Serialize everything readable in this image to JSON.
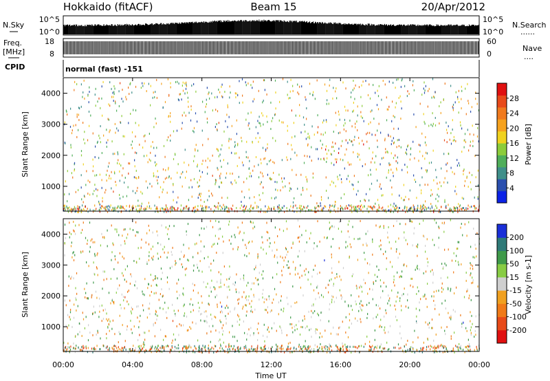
{
  "header": {
    "station": "Hokkaido (fitACF)",
    "beam": "Beam 15",
    "date": "20/Apr/2012"
  },
  "left_labels": {
    "nsky": "N.Sky",
    "freq_line1": "Freq.",
    "freq_line2": "[MHz]",
    "cpid": "CPID"
  },
  "right_labels": {
    "nsearch": "N.Search",
    "nsearch_dots": "......",
    "nave": "Nave",
    "nave_dots": "...."
  },
  "noise_panel": {
    "left_ticks": [
      "10^5",
      "10^0"
    ],
    "right_ticks": [
      "10^5",
      "10^0"
    ]
  },
  "freq_panel": {
    "left_ticks": [
      "18",
      "8"
    ],
    "right_ticks": [
      "60",
      "0"
    ]
  },
  "cpid_text": "normal (fast) -151",
  "time_axis": {
    "label": "Time UT",
    "ticks": [
      "00:00",
      "04:00",
      "08:00",
      "12:00",
      "16:00",
      "20:00",
      "00:00"
    ],
    "range_hours": [
      0,
      24
    ]
  },
  "chart_data": [
    {
      "type": "heatmap",
      "name": "power",
      "ylabel": "Slant Range [km]",
      "yticks": [
        1000,
        2000,
        3000,
        4000
      ],
      "ylim": [
        200,
        4500
      ],
      "colorbar": {
        "label": "Power [dB]",
        "ticks": [
          4,
          8,
          12,
          16,
          20,
          24,
          28
        ],
        "range": [
          0,
          32
        ],
        "colors": [
          "#0b22e6",
          "#2a4fae",
          "#3f8f8a",
          "#4fae5a",
          "#8ccc3a",
          "#f0d21e",
          "#f6a21e",
          "#f07a1e",
          "#e84a1a",
          "#e01010"
        ]
      },
      "bands": [
        {
          "t0": 0,
          "t1": 3,
          "r0": 700,
          "r1": 1400,
          "value": 22
        },
        {
          "t0": 1.5,
          "t1": 6,
          "r0": 1250,
          "r1": 1900,
          "value": 18
        },
        {
          "t0": 3,
          "t1": 8,
          "r0": 900,
          "r1": 1500,
          "value": 21
        },
        {
          "t0": 6,
          "t1": 11,
          "r0": 1400,
          "r1": 2100,
          "value": 17
        },
        {
          "t0": 8,
          "t1": 13,
          "r0": 1100,
          "r1": 1600,
          "value": 20
        },
        {
          "t0": 11,
          "t1": 14,
          "r0": 1800,
          "r1": 2600,
          "value": 19
        },
        {
          "t0": 13.5,
          "t1": 17.5,
          "r0": 1700,
          "r1": 3000,
          "value": 26
        },
        {
          "t0": 17.5,
          "t1": 19,
          "r0": 2000,
          "r1": 2800,
          "value": 24
        },
        {
          "t0": 19,
          "t1": 22,
          "r0": 1800,
          "r1": 2700,
          "value": 23
        },
        {
          "t0": 21,
          "t1": 24,
          "r0": 1000,
          "r1": 1800,
          "value": 18
        }
      ]
    },
    {
      "type": "heatmap",
      "name": "velocity",
      "ylabel": "Slant Range [km]",
      "yticks": [
        1000,
        2000,
        3000,
        4000
      ],
      "ylim": [
        200,
        4500
      ],
      "colorbar": {
        "label": "Velocity [m s-1]",
        "ticks": [
          200,
          100,
          50,
          15,
          -15,
          -50,
          -100,
          -200
        ],
        "colors": [
          "#1a2fd8",
          "#2f7a78",
          "#3f9a4a",
          "#88cc44",
          "#cfcfcf",
          "#f0a020",
          "#f07a18",
          "#e84a18",
          "#e01010"
        ]
      },
      "bands": [
        {
          "t0": 0,
          "t1": 24,
          "r0": 700,
          "r1": 2100,
          "value": 0
        },
        {
          "t0": 9,
          "t1": 16,
          "r0": 1800,
          "r1": 2600,
          "value": 0
        },
        {
          "t0": 12,
          "t1": 16,
          "r0": 2700,
          "r1": 3400,
          "value": -60
        },
        {
          "t0": 18,
          "t1": 20.5,
          "r0": 1600,
          "r1": 2700,
          "value": 60
        },
        {
          "t0": 16,
          "t1": 18,
          "r0": 1300,
          "r1": 1900,
          "value": 60
        }
      ]
    }
  ]
}
